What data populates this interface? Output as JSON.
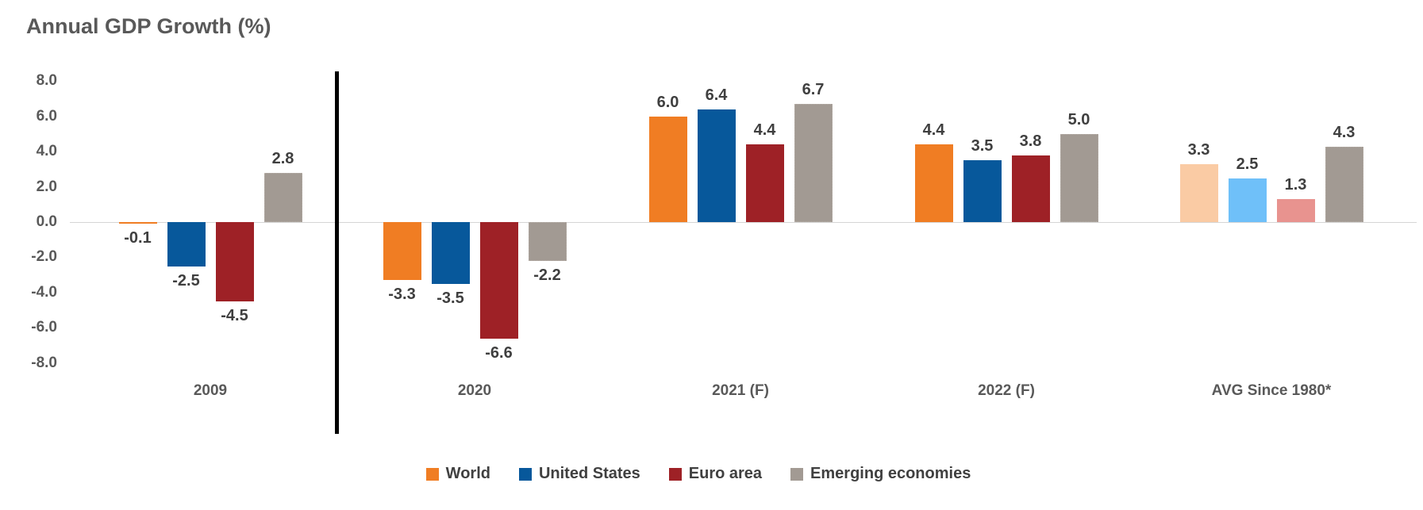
{
  "title": "Annual GDP Growth (%)",
  "chart_data": {
    "type": "bar",
    "title": "Annual GDP Growth (%)",
    "categories": [
      "2009",
      "2020",
      "2021 (F)",
      "2022 (F)",
      "AVG Since 1980*"
    ],
    "series": [
      {
        "name": "World",
        "color": "#F07D23",
        "light_color": "#FACBA4",
        "values": [
          -0.1,
          -3.3,
          6.0,
          4.4,
          3.3
        ]
      },
      {
        "name": "United States",
        "color": "#07589B",
        "light_color": "#6FC0F9",
        "values": [
          -2.5,
          -3.5,
          6.4,
          3.5,
          2.5
        ]
      },
      {
        "name": "Euro area",
        "color": "#9E2126",
        "light_color": "#E8938F",
        "values": [
          -4.5,
          -6.6,
          4.4,
          3.8,
          1.3
        ]
      },
      {
        "name": "Emerging economies",
        "color": "#A29A93",
        "light_color": "#A29A93",
        "values": [
          2.8,
          -2.2,
          6.7,
          5.0,
          4.3
        ]
      }
    ],
    "light_color_category_index": 4,
    "ylim": [
      -8,
      8
    ],
    "ytick_step": 2,
    "ytick_labels": [
      "8.0",
      "6.0",
      "4.0",
      "2.0",
      "0.0",
      "-2.0",
      "-4.0",
      "-6.0",
      "-8.0"
    ],
    "grid": "zero-line-only",
    "value_label_decimals": 1,
    "legend_position": "bottom-center",
    "separator_after_category_index": 0,
    "xlabel": "",
    "ylabel": ""
  }
}
